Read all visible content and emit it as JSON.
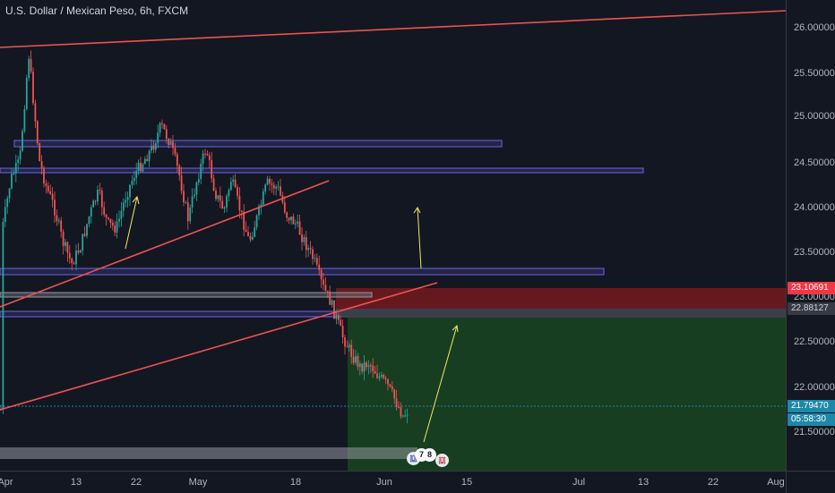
{
  "header": {
    "symbol_title": "U.S. Dollar / Mexican Peso, 6h, FXCM"
  },
  "colors": {
    "background": "#131722",
    "candle_up": "#26a69a",
    "candle_down": "#ef5350",
    "trendline": "#ef5350",
    "zone_border": "#6b5bd6",
    "target_zone": "#1b5e20",
    "stop_zone": "#b71c1c",
    "arrow": "#f5e663",
    "last_price": "#1e88a8"
  },
  "price_axis": {
    "ticks": [
      "26.00000",
      "25.50000",
      "25.00000",
      "24.50000",
      "24.00000",
      "23.50000",
      "23.00000",
      "22.50000",
      "22.00000",
      "21.50000"
    ],
    "labels": {
      "stop_level": "23.10691",
      "entry_level": "22.88127",
      "last_price": "21.79470",
      "countdown": "05:58:30"
    }
  },
  "time_axis": {
    "ticks": [
      "Apr",
      "13",
      "22",
      "May",
      "18",
      "Jun",
      "15",
      "Jul",
      "13",
      "22",
      "Aug"
    ]
  },
  "events": {
    "count_badge_1": "7",
    "count_badge_2": "8"
  }
}
